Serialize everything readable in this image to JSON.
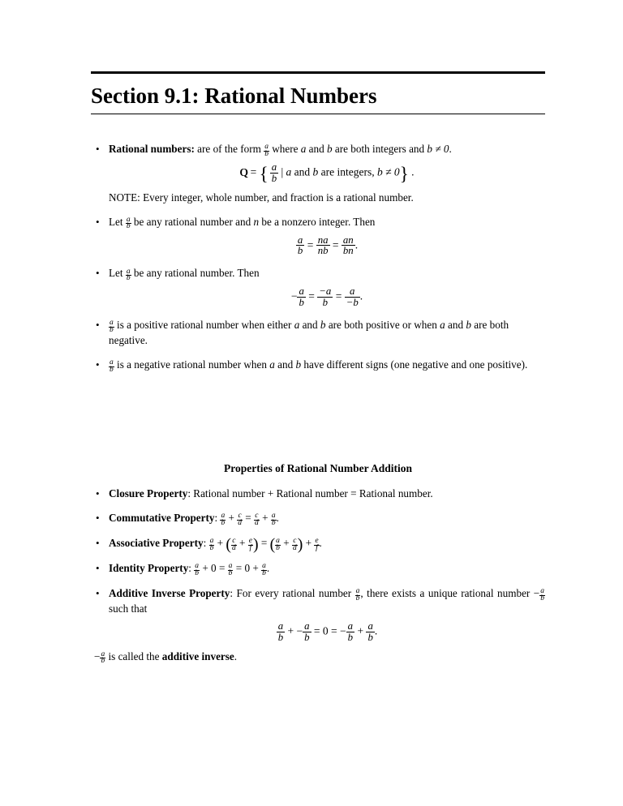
{
  "title": "Section 9.1: Rational Numbers",
  "bullet1": {
    "lead": "Rational numbers:",
    "text1": " are of the form ",
    "text2": " where ",
    "a": "a",
    "and": " and ",
    "b": "b",
    "text3": " are both integers and ",
    "cond": "b ≠ 0",
    "period": ".",
    "set_text": " a and b are integers, b ≠ 0",
    "note": "NOTE: Every integer, whole number, and fraction is a rational number."
  },
  "bullet2": {
    "let": "Let ",
    "text1": " be any rational number and ",
    "n": "n",
    "text2": " be a nonzero integer. Then"
  },
  "bullet3": {
    "let": "Let ",
    "text": " be any rational number. Then"
  },
  "bullet4": {
    "text1": " is a positive rational number when either ",
    "a": "a",
    "and": " and ",
    "b": "b",
    "text2": " are both positive or when ",
    "text3": " are both negative."
  },
  "bullet5": {
    "text1": " is a negative rational number when ",
    "a": "a",
    "and": " and ",
    "b": "b",
    "text2": " have different signs (one negative and one positive)."
  },
  "section2": "Properties of Rational Number Addition",
  "p1": {
    "name": "Closure Property",
    "text": ": Rational number + Rational number = Rational number."
  },
  "p2": {
    "name": "Commutative Property",
    "colon": ": "
  },
  "p3": {
    "name": "Associative Property",
    "colon": ": "
  },
  "p4": {
    "name": "Identity Property",
    "colon": ": "
  },
  "p5": {
    "name": "Additive Inverse Property",
    "text1": ": For every rational number ",
    "text2": ", there exists a unique rational number ",
    "text3": " such that",
    "tail1": " is called the ",
    "tail2": "additive inverse",
    "period": "."
  },
  "sym": {
    "a": "a",
    "b": "b",
    "c": "c",
    "d": "d",
    "e": "e",
    "f": "f",
    "na": "na",
    "nb": "nb",
    "an": "an",
    "bn": "bn",
    "ma": "−a",
    "mb": "−b",
    "eq": " = ",
    "plus": " + ",
    "zero": "0",
    "dot": ".",
    "minus": "−",
    "pminus": " + −",
    "bar": " | "
  }
}
